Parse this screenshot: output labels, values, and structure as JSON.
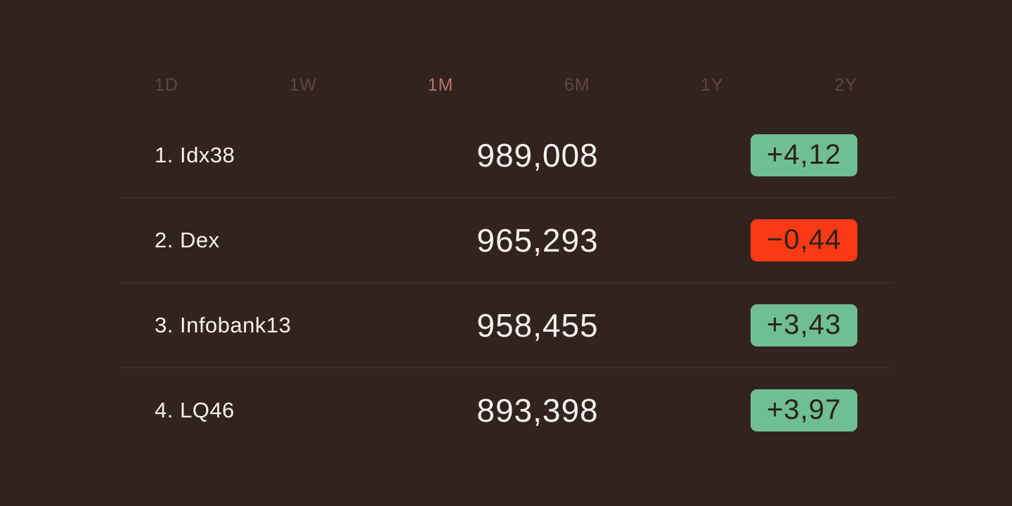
{
  "theme": {
    "background": "#33231f",
    "text_primary": "#f6f1ee",
    "divider": "#4a3530",
    "tab_active": "#b4736c",
    "tab_inactive": "#5e4742",
    "badge_positive_bg": "#6fbf92",
    "badge_negative_bg": "#fa3a14",
    "badge_text": "#2e211d"
  },
  "tabs": [
    {
      "label": "1D",
      "active": false
    },
    {
      "label": "1W",
      "active": false
    },
    {
      "label": "1M",
      "active": true
    },
    {
      "label": "6M",
      "active": false
    },
    {
      "label": "1Y",
      "active": false
    },
    {
      "label": "2Y",
      "active": false
    }
  ],
  "rows": [
    {
      "label": "1. Idx38",
      "value": "989,008",
      "change": "+4,12",
      "direction": "positive"
    },
    {
      "label": "2. Dex",
      "value": "965,293",
      "change": "−0,44",
      "direction": "negative"
    },
    {
      "label": "3. Infobank13",
      "value": "958,455",
      "change": "+3,43",
      "direction": "positive"
    },
    {
      "label": "4. LQ46",
      "value": "893,398",
      "change": "+3,97",
      "direction": "positive"
    }
  ]
}
